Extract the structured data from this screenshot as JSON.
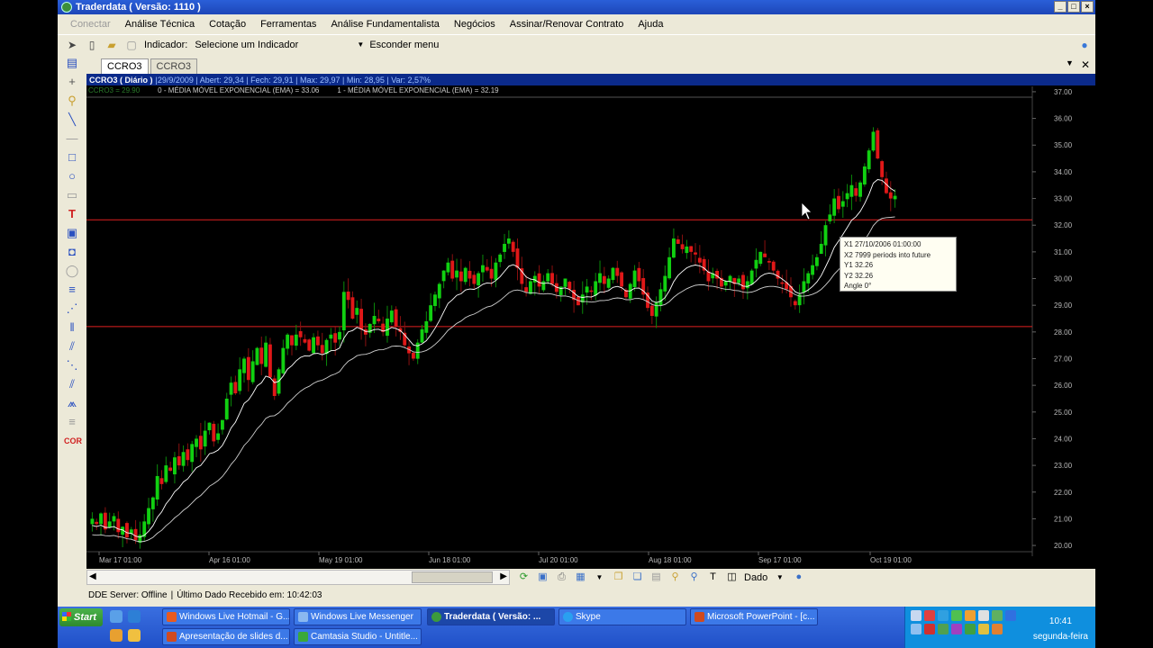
{
  "window": {
    "title": "Traderdata ( Versão: 1110 )",
    "buttons": [
      "_",
      "□",
      "×"
    ]
  },
  "menu": [
    "Conectar",
    "Análise Técnica",
    "Cotação",
    "Ferramentas",
    "Análise Fundamentalista",
    "Negócios",
    "Assinar/Renovar Contrato",
    "Ajuda"
  ],
  "toolbar": {
    "indicator_label": "Indicador:",
    "indicator_select": "Selecione um Indicador",
    "hide_menu": "Esconder menu"
  },
  "tabs": [
    "CCRO3",
    "CCRO3"
  ],
  "infobar": {
    "symbol": "CCRO3 ( Diário )",
    "quote": "|29/9/2009 | Abert: 29,34 | Fech: 29,91 | Max: 29,97 | Min: 28,95 | Var: 2,57%"
  },
  "ema": {
    "left": "CCRO3 = 29.90",
    "ema0": "0 - MÉDIA MÓVEL EXPONENCIAL (EMA) = 33.06",
    "ema1": "1 - MÉDIA MÓVEL EXPONENCIAL (EMA) = 32.19"
  },
  "tooltip": {
    "x1": "X1  27/10/2006 01:00:00",
    "x2": "X2  7999 periods into future",
    "y1": "Y1  32.26",
    "y2": "Y2  32.26",
    "angle": "Angle  0°"
  },
  "bottom": {
    "dado_label": "Dado"
  },
  "status": {
    "server": "DDE Server: Offline",
    "sep": "|",
    "last": "Último Dado Recebido em: 10:42:03"
  },
  "taskbar": {
    "start": "Start",
    "tasks_row1": [
      "Windows Live Hotmail - G...",
      "Windows Live Messenger",
      "Traderdata ( Versão: ...",
      "Skype",
      "Microsoft PowerPoint - [c..."
    ],
    "tasks_row2": [
      "Apresentação de slides d...",
      "Camtasia Studio - Untitle..."
    ],
    "clock": "10:41",
    "day": "segunda-feira"
  },
  "chart_data": {
    "type": "candlestick",
    "ylim": [
      19.8,
      37.2
    ],
    "y_ticks": [
      "37.00",
      "36.00",
      "35.00",
      "34.00",
      "33.00",
      "32.00",
      "31.00",
      "30.00",
      "29.00",
      "28.00",
      "27.00",
      "26.00",
      "25.00",
      "24.00",
      "23.00",
      "22.00",
      "21.00",
      "20.00"
    ],
    "x_ticks": [
      "Mar 17 01:00",
      "Apr 16 01:00",
      "May 19 01:00",
      "Jun 18 01:00",
      "Jul 20 01:00",
      "Aug 18 01:00",
      "Sep 17 01:00",
      "Oct 19 01:00"
    ],
    "hlines": [
      32.2,
      28.2
    ],
    "close_path": [
      21.0,
      20.8,
      21.2,
      20.6,
      20.9,
      21.1,
      20.5,
      20.7,
      20.3,
      20.6,
      20.2,
      20.4,
      20.9,
      21.4,
      21.8,
      22.6,
      22.3,
      23.0,
      22.8,
      23.3,
      23.0,
      23.5,
      23.2,
      23.8,
      24.0,
      23.6,
      24.3,
      24.6,
      23.9,
      24.2,
      24.7,
      25.5,
      26.1,
      25.7,
      26.6,
      27.0,
      26.2,
      26.9,
      27.4,
      26.8,
      27.6,
      26.3,
      25.6,
      26.6,
      27.4,
      27.9,
      27.5,
      27.9,
      27.8,
      27.6,
      27.3,
      27.8,
      27.5,
      27.2,
      27.7,
      27.9,
      27.6,
      28.0,
      29.5,
      29.2,
      28.5,
      28.9,
      28.1,
      27.9,
      28.3,
      28.6,
      28.4,
      28.0,
      28.5,
      28.8,
      28.2,
      28.0,
      27.5,
      27.2,
      27.0,
      27.6,
      28.1,
      28.4,
      29.0,
      29.4,
      29.8,
      30.3,
      30.6,
      30.0,
      30.3,
      29.9,
      30.4,
      30.0,
      29.8,
      30.2,
      30.5,
      30.3,
      30.0,
      30.6,
      30.9,
      31.3,
      31.5,
      31.0,
      30.4,
      29.8,
      29.5,
      29.9,
      30.1,
      29.7,
      29.9,
      30.2,
      29.8,
      29.5,
      29.7,
      30.0,
      29.6,
      29.2,
      29.0,
      29.4,
      29.7,
      29.5,
      29.9,
      30.2,
      29.8,
      30.0,
      30.4,
      30.1,
      29.7,
      29.3,
      29.8,
      30.3,
      29.9,
      29.4,
      28.9,
      28.6,
      29.1,
      29.6,
      30.1,
      30.8,
      31.5,
      31.3,
      31.1,
      31.2,
      31.0,
      30.9,
      30.6,
      30.3,
      29.9,
      30.2,
      30.0,
      29.7,
      29.9,
      30.1,
      29.8,
      30.0,
      29.6,
      29.9,
      30.3,
      30.7,
      31.0,
      30.8,
      30.6,
      30.3,
      30.0,
      29.8,
      29.6,
      29.3,
      29.0,
      29.4,
      29.9,
      30.2,
      30.5,
      30.8,
      31.3,
      32.0,
      32.4,
      33.0,
      32.6,
      32.9,
      33.2,
      33.5,
      33.1,
      33.6,
      34.2,
      34.8,
      35.5,
      34.5,
      33.8,
      33.2,
      33.0,
      33.1
    ]
  }
}
